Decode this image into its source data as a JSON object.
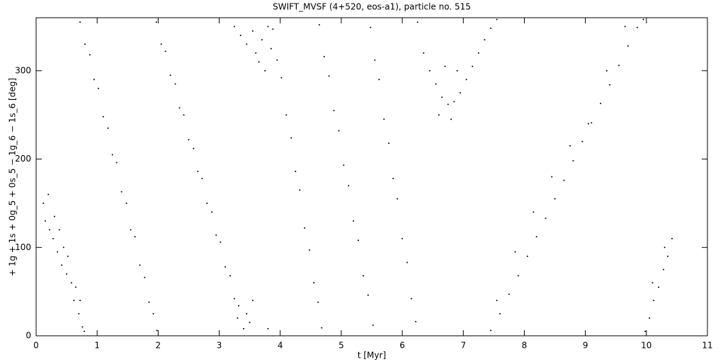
{
  "chart_data": {
    "type": "scatter",
    "title": "SWIFT_MVSF (4+520, eos-a1), particle no. 515",
    "x_label": "t [Myr]",
    "y_label": "+ 1g + 1s + 0g_5 + 0s_5 − 1g_6 − 1s_6 [deg]",
    "color": "#000000",
    "xlim": [
      0,
      11
    ],
    "ylim": [
      0,
      360
    ],
    "xticks": [
      0,
      1,
      2,
      3,
      4,
      5,
      6,
      7,
      8,
      9,
      10,
      11
    ],
    "yticks": [
      0,
      100,
      200,
      300
    ],
    "x": [
      0.12,
      0.15,
      0.2,
      0.22,
      0.28,
      0.3,
      0.35,
      0.38,
      0.42,
      0.45,
      0.5,
      0.52,
      0.58,
      0.62,
      0.65,
      0.7,
      0.72,
      0.76,
      0.79,
      0.72,
      0.8,
      0.88,
      0.95,
      1.02,
      1.1,
      1.18,
      1.25,
      1.32,
      1.4,
      1.48,
      1.55,
      1.62,
      1.7,
      1.78,
      1.85,
      1.92,
      1.98,
      1.97,
      2.05,
      2.12,
      2.2,
      2.28,
      2.35,
      2.42,
      2.5,
      2.58,
      2.65,
      2.72,
      2.8,
      2.88,
      2.95,
      3.02,
      3.1,
      3.18,
      3.25,
      3.32,
      3.4,
      3.45,
      3.25,
      3.35,
      3.45,
      3.55,
      3.6,
      3.65,
      3.7,
      3.75,
      3.8,
      3.85,
      3.5,
      3.55,
      3.3,
      3.8,
      3.88,
      3.95,
      4.02,
      4.1,
      4.18,
      4.25,
      4.32,
      4.4,
      4.48,
      4.55,
      4.62,
      4.68,
      4.64,
      4.72,
      4.8,
      4.88,
      4.96,
      5.04,
      5.12,
      5.2,
      5.28,
      5.36,
      5.44,
      5.52,
      5.48,
      5.55,
      5.62,
      5.7,
      5.78,
      5.85,
      5.92,
      6.0,
      6.08,
      6.15,
      6.22,
      6.25,
      6.35,
      6.45,
      6.55,
      6.65,
      6.75,
      6.85,
      6.95,
      7.05,
      7.15,
      7.25,
      7.35,
      7.45,
      7.55,
      6.6,
      6.8,
      6.9,
      6.7,
      7.45,
      7.6,
      7.75,
      7.9,
      8.05,
      8.2,
      8.35,
      8.5,
      8.65,
      8.8,
      8.95,
      9.1,
      9.25,
      9.4,
      9.55,
      9.7,
      9.85,
      9.95,
      7.55,
      7.85,
      8.15,
      8.45,
      8.75,
      9.05,
      9.35,
      9.65,
      9.98,
      10.05,
      10.12,
      10.2,
      10.28,
      10.35,
      10.42,
      10.1,
      10.3
    ],
    "values": [
      150,
      130,
      160,
      120,
      110,
      135,
      95,
      120,
      80,
      100,
      70,
      90,
      60,
      40,
      55,
      25,
      40,
      10,
      5,
      355,
      330,
      318,
      290,
      280,
      248,
      235,
      205,
      196,
      163,
      150,
      120,
      112,
      80,
      66,
      38,
      25,
      6,
      355,
      330,
      322,
      295,
      285,
      258,
      250,
      222,
      212,
      186,
      178,
      150,
      140,
      114,
      106,
      78,
      68,
      42,
      34,
      8,
      25,
      350,
      340,
      330,
      345,
      320,
      310,
      335,
      300,
      350,
      325,
      15,
      40,
      20,
      8,
      347,
      312,
      292,
      250,
      224,
      186,
      165,
      122,
      97,
      60,
      38,
      9,
      352,
      316,
      294,
      255,
      232,
      193,
      170,
      130,
      108,
      68,
      46,
      12,
      349,
      312,
      290,
      245,
      218,
      178,
      155,
      110,
      83,
      42,
      16,
      355,
      320,
      300,
      285,
      270,
      262,
      265,
      275,
      290,
      305,
      320,
      335,
      348,
      358,
      250,
      245,
      300,
      305,
      6,
      25,
      47,
      68,
      90,
      112,
      133,
      155,
      176,
      198,
      220,
      241,
      263,
      284,
      306,
      328,
      349,
      358,
      40,
      95,
      140,
      180,
      215,
      240,
      300,
      350,
      5,
      20,
      40,
      55,
      75,
      90,
      110,
      60,
      100
    ]
  }
}
